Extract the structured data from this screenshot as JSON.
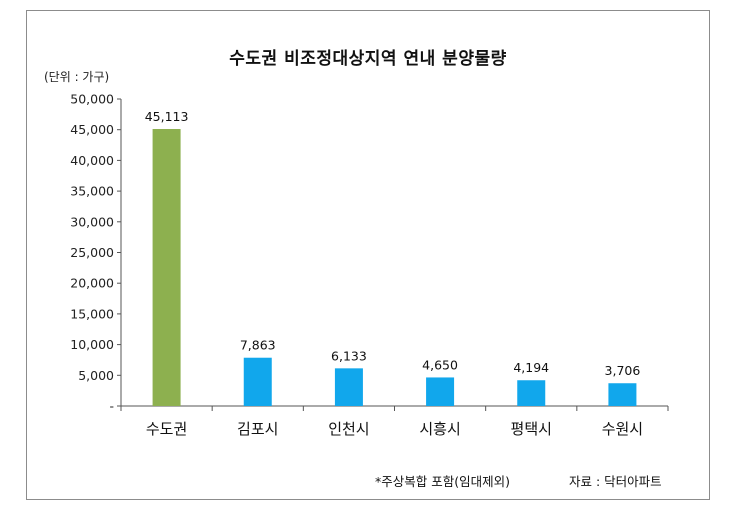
{
  "chart_data": {
    "type": "bar",
    "title": "수도권 비조정대상지역 연내 분양물량",
    "unit_label": "(단위 : 가구)",
    "categories": [
      "수도권",
      "김포시",
      "인천시",
      "시흥시",
      "평택시",
      "수원시"
    ],
    "values": [
      45113,
      7863,
      6133,
      4650,
      4194,
      3706
    ],
    "value_labels": [
      "45,113",
      "7,863",
      "6,133",
      "4,650",
      "4,194",
      "3,706"
    ],
    "ylim": [
      0,
      50000
    ],
    "yticks": [
      "-",
      "5,000",
      "10,000",
      "15,000",
      "20,000",
      "25,000",
      "30,000",
      "35,000",
      "40,000",
      "45,000",
      "50,000"
    ],
    "colors": [
      "#8db04f",
      "#11a7ec",
      "#11a7ec",
      "#11a7ec",
      "#11a7ec",
      "#11a7ec"
    ],
    "grid": false,
    "xlabel": "",
    "ylabel": ""
  },
  "footnote": "*주상복합 포함(임대제외)",
  "source": "자료 : 닥터아파트"
}
